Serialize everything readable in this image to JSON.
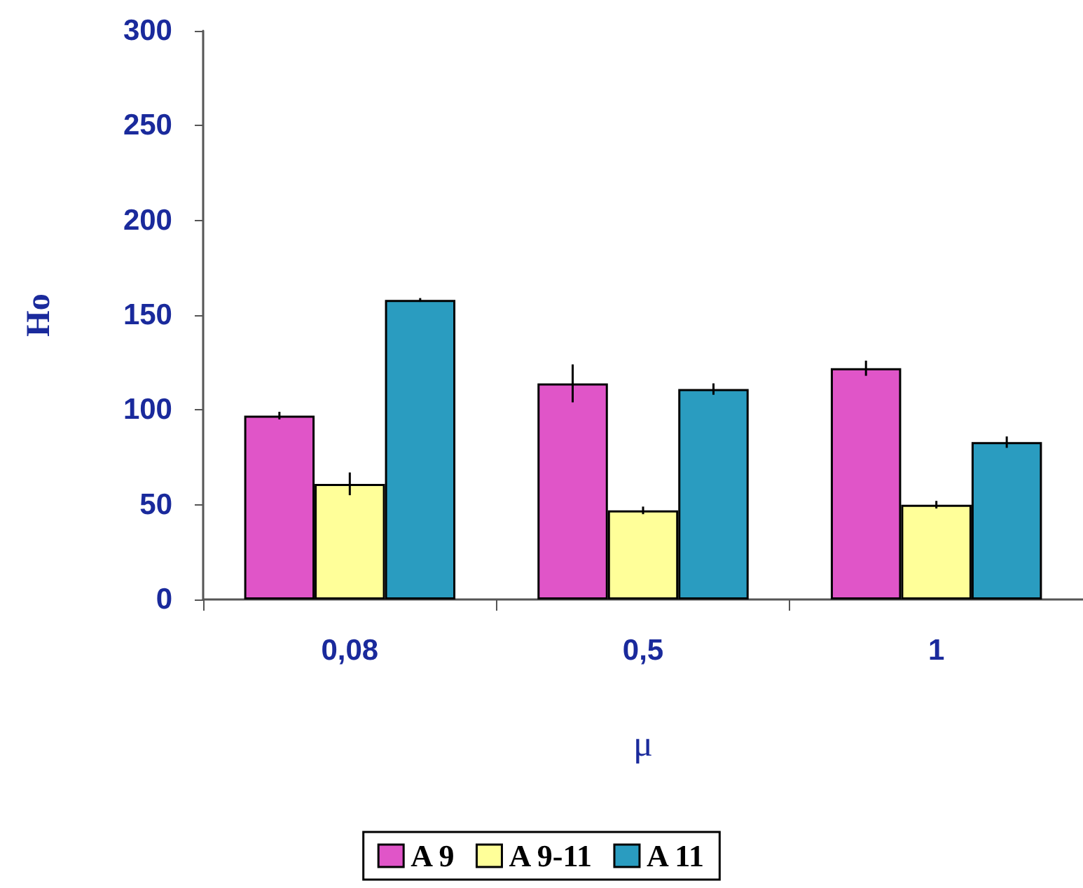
{
  "chart_data": {
    "type": "bar",
    "xlabel": "μ",
    "ylabel": "Ho",
    "categories": [
      "0,08",
      "0,5",
      "1"
    ],
    "series": [
      {
        "name": "A 9",
        "color": "#e055c8",
        "values": [
          97,
          114,
          122
        ],
        "errors": [
          2,
          10,
          4
        ]
      },
      {
        "name": "A 9-11",
        "color": "#ffff99",
        "values": [
          61,
          47,
          50
        ],
        "errors": [
          6,
          2,
          2
        ]
      },
      {
        "name": "A 11",
        "color": "#2a9cc0",
        "values": [
          158,
          111,
          83
        ],
        "errors": [
          1,
          3,
          3
        ]
      }
    ],
    "ylim": [
      0,
      300
    ],
    "yticks": [
      0,
      50,
      100,
      150,
      200,
      250,
      300
    ],
    "grid": false,
    "legend": "bottom"
  }
}
